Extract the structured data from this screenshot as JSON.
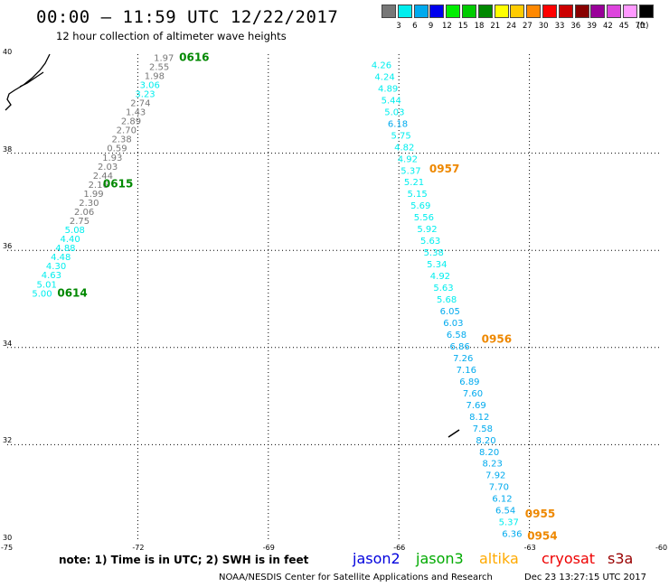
{
  "header": {
    "title": "00:00 – 11:59 UTC 12/22/2017",
    "subtitle": "12 hour collection of altimeter wave heights"
  },
  "legend": {
    "unit": "(ft)",
    "items": [
      {
        "label": "3",
        "color": "#777777"
      },
      {
        "label": "6",
        "color": "#00eeee"
      },
      {
        "label": "9",
        "color": "#00aaee"
      },
      {
        "label": "12",
        "color": "#0000ee"
      },
      {
        "label": "15",
        "color": "#00ee00"
      },
      {
        "label": "18",
        "color": "#00cc00"
      },
      {
        "label": "21",
        "color": "#008800"
      },
      {
        "label": "24",
        "color": "#ffff00"
      },
      {
        "label": "27",
        "color": "#ffcc00"
      },
      {
        "label": "30",
        "color": "#ff8800"
      },
      {
        "label": "33",
        "color": "#ff0000"
      },
      {
        "label": "36",
        "color": "#cc0000"
      },
      {
        "label": "39",
        "color": "#880000"
      },
      {
        "label": "42",
        "color": "#990099"
      },
      {
        "label": "45",
        "color": "#dd44dd"
      },
      {
        "label": "70",
        "color": "#ff99ff"
      },
      {
        "label": "",
        "color": "#000000"
      }
    ]
  },
  "axes": {
    "lat_labels": [
      "40",
      "38",
      "36",
      "34",
      "32",
      "30"
    ],
    "lon_labels": [
      "-75",
      "-72",
      "-69",
      "-66",
      "-63",
      "-60"
    ],
    "lat_values": [
      40,
      38,
      36,
      34,
      32,
      30
    ],
    "lon_values": [
      -75,
      -72,
      -69,
      -66,
      -63,
      -60
    ],
    "lon_range": [
      -75,
      -60
    ],
    "lat_range": [
      30,
      40
    ],
    "grid": "dotted"
  },
  "tracks": [
    {
      "name": "track-0616-0614",
      "start": [
        -71.4,
        39.9
      ],
      "end": [
        -74.2,
        35.05
      ],
      "wave_heights": [
        {
          "label": "1.97",
          "color": "#777777"
        },
        {
          "label": "2.55",
          "color": "#777777"
        },
        {
          "label": "1.98",
          "color": "#777777"
        },
        {
          "label": "3.06",
          "color": "#00eeee"
        },
        {
          "label": "3.23",
          "color": "#00eeee"
        },
        {
          "label": "2.74",
          "color": "#777777"
        },
        {
          "label": "1.43",
          "color": "#777777"
        },
        {
          "label": "2.89",
          "color": "#777777"
        },
        {
          "label": "2.70",
          "color": "#777777"
        },
        {
          "label": "2.38",
          "color": "#777777"
        },
        {
          "label": "0.59",
          "color": "#777777"
        },
        {
          "label": "1.93",
          "color": "#777777"
        },
        {
          "label": "2.03",
          "color": "#777777"
        },
        {
          "label": "2.44",
          "color": "#777777"
        },
        {
          "label": "2.16",
          "color": "#777777"
        },
        {
          "label": "1.99",
          "color": "#777777"
        },
        {
          "label": "2.30",
          "color": "#777777"
        },
        {
          "label": "2.06",
          "color": "#777777"
        },
        {
          "label": "2.75",
          "color": "#777777"
        },
        {
          "label": "5.08",
          "color": "#00eeee"
        },
        {
          "label": "4.40",
          "color": "#00eeee"
        },
        {
          "label": "4.88",
          "color": "#00eeee"
        },
        {
          "label": "4.48",
          "color": "#00eeee"
        },
        {
          "label": "4.30",
          "color": "#00eeee"
        },
        {
          "label": "4.63",
          "color": "#00eeee"
        },
        {
          "label": "5.01",
          "color": "#00eeee"
        },
        {
          "label": "5.00",
          "color": "#00eeee"
        }
      ],
      "time_tags": [
        {
          "label": "0616",
          "color": "#008800",
          "lon": -71.05,
          "lat": 39.9
        },
        {
          "label": "0615",
          "color": "#008800",
          "lon": -72.8,
          "lat": 37.3
        },
        {
          "label": "0614",
          "color": "#008800",
          "lon": -73.85,
          "lat": 35.05
        }
      ]
    },
    {
      "name": "track-0957-0954",
      "start": [
        -66.4,
        39.75
      ],
      "end": [
        -63.4,
        30.1
      ],
      "wave_heights": [
        {
          "label": "4.26",
          "color": "#00eeee"
        },
        {
          "label": "4.24",
          "color": "#00eeee"
        },
        {
          "label": "4.89",
          "color": "#00eeee"
        },
        {
          "label": "5.44",
          "color": "#00eeee"
        },
        {
          "label": "5.03",
          "color": "#00eeee"
        },
        {
          "label": "6.18",
          "color": "#00aaee"
        },
        {
          "label": "5.75",
          "color": "#00eeee"
        },
        {
          "label": "4.82",
          "color": "#00eeee"
        },
        {
          "label": "4.92",
          "color": "#00eeee"
        },
        {
          "label": "5.37",
          "color": "#00eeee"
        },
        {
          "label": "5.21",
          "color": "#00eeee"
        },
        {
          "label": "5.15",
          "color": "#00eeee"
        },
        {
          "label": "5.69",
          "color": "#00eeee"
        },
        {
          "label": "5.56",
          "color": "#00eeee"
        },
        {
          "label": "5.92",
          "color": "#00eeee"
        },
        {
          "label": "5.63",
          "color": "#00eeee"
        },
        {
          "label": "5.38",
          "color": "#00eeee"
        },
        {
          "label": "5.34",
          "color": "#00eeee"
        },
        {
          "label": "4.92",
          "color": "#00eeee"
        },
        {
          "label": "5.63",
          "color": "#00eeee"
        },
        {
          "label": "5.68",
          "color": "#00eeee"
        },
        {
          "label": "6.05",
          "color": "#00aaee"
        },
        {
          "label": "6.03",
          "color": "#00aaee"
        },
        {
          "label": "6.58",
          "color": "#00aaee"
        },
        {
          "label": "6.86",
          "color": "#00aaee"
        },
        {
          "label": "7.26",
          "color": "#00aaee"
        },
        {
          "label": "7.16",
          "color": "#00aaee"
        },
        {
          "label": "6.89",
          "color": "#00aaee"
        },
        {
          "label": "7.60",
          "color": "#00aaee"
        },
        {
          "label": "7.69",
          "color": "#00aaee"
        },
        {
          "label": "8.12",
          "color": "#00aaee"
        },
        {
          "label": "7.58",
          "color": "#00aaee"
        },
        {
          "label": "8.20",
          "color": "#00aaee"
        },
        {
          "label": "8.20",
          "color": "#00aaee"
        },
        {
          "label": "8.23",
          "color": "#00aaee"
        },
        {
          "label": "7.92",
          "color": "#00aaee"
        },
        {
          "label": "7.70",
          "color": "#00aaee"
        },
        {
          "label": "6.12",
          "color": "#00aaee"
        },
        {
          "label": "6.54",
          "color": "#00aaee"
        },
        {
          "label": "5.37",
          "color": "#00eeee"
        },
        {
          "label": "6.36",
          "color": "#00aaee"
        }
      ],
      "time_tags": [
        {
          "label": "0957",
          "color": "#ee8800",
          "lon": -65.3,
          "lat": 37.6
        },
        {
          "label": "0956",
          "color": "#ee8800",
          "lon": -64.1,
          "lat": 34.1
        },
        {
          "label": "0955",
          "color": "#ee8800",
          "lon": -63.1,
          "lat": 30.5
        },
        {
          "label": "0954",
          "color": "#ee8800",
          "lon": -63.05,
          "lat": 30.05
        }
      ]
    }
  ],
  "footer": {
    "note": "note: 1) Time is in UTC; 2) SWH is in feet",
    "satellites": [
      {
        "name": "jason2",
        "color": "#0000dd"
      },
      {
        "name": "jason3",
        "color": "#00aa00"
      },
      {
        "name": "altika",
        "color": "#ffaa00"
      },
      {
        "name": "cryosat",
        "color": "#ee0000"
      },
      {
        "name": "s3a",
        "color": "#990000"
      }
    ],
    "credit": "NOAA/NESDIS Center for Satellite Applications and Research",
    "timestamp": "Dec 23 13:27:15 UTC 2017"
  }
}
